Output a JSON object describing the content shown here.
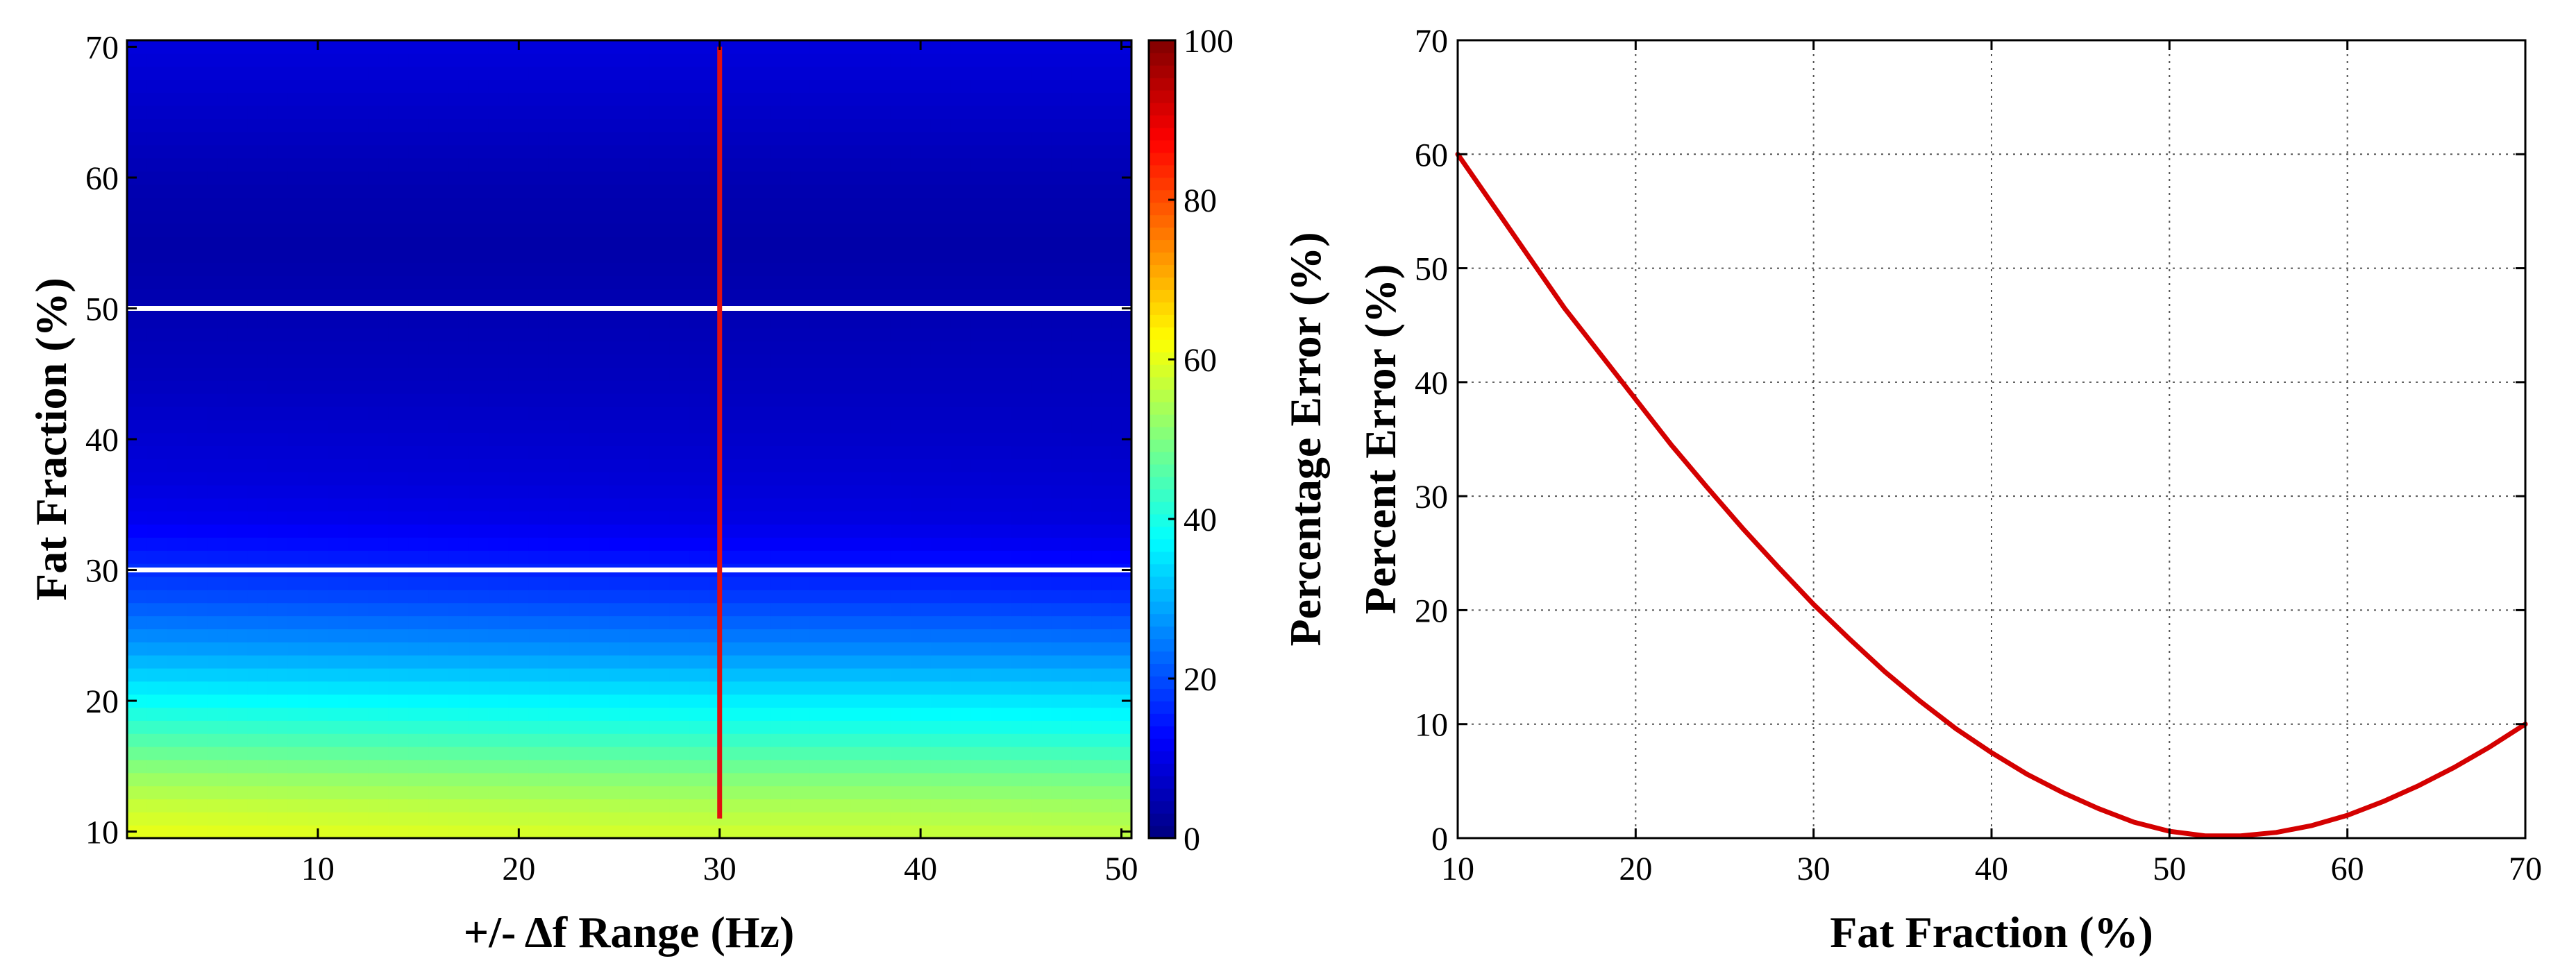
{
  "chart_data": [
    {
      "type": "heatmap",
      "xlabel": "+/- Δf Range (Hz)",
      "ylabel": "Fat Fraction (%)",
      "x_range": [
        0.5,
        50.5
      ],
      "y_range": [
        9.5,
        70.5
      ],
      "xticks": [
        10,
        20,
        30,
        40,
        50
      ],
      "yticks": [
        10,
        20,
        30,
        40,
        50,
        60,
        70
      ],
      "colormap": "jet",
      "clim": [
        0,
        100
      ],
      "colorbar": {
        "label": "Percentage Error (%)",
        "ticks": [
          0,
          20,
          40,
          60,
          80,
          100
        ]
      },
      "z_rows": [
        {
          "fat_fraction": 10,
          "error_at_x1": 60,
          "error_at_x50": 56
        },
        {
          "fat_fraction": 12,
          "error_at_x1": 57,
          "error_at_x50": 53
        },
        {
          "fat_fraction": 14,
          "error_at_x1": 53,
          "error_at_x50": 49
        },
        {
          "fat_fraction": 16,
          "error_at_x1": 48,
          "error_at_x50": 44
        },
        {
          "fat_fraction": 18,
          "error_at_x1": 43,
          "error_at_x50": 39
        },
        {
          "fat_fraction": 20,
          "error_at_x1": 38,
          "error_at_x50": 35
        },
        {
          "fat_fraction": 22,
          "error_at_x1": 33,
          "error_at_x50": 30
        },
        {
          "fat_fraction": 24,
          "error_at_x1": 28,
          "error_at_x50": 25
        },
        {
          "fat_fraction": 26,
          "error_at_x1": 24,
          "error_at_x50": 21
        },
        {
          "fat_fraction": 28,
          "error_at_x1": 20,
          "error_at_x50": 17
        },
        {
          "fat_fraction": 30,
          "error_at_x1": 17,
          "error_at_x50": 14
        },
        {
          "fat_fraction": 32,
          "error_at_x1": 14,
          "error_at_x50": 11
        },
        {
          "fat_fraction": 34,
          "error_at_x1": 11,
          "error_at_x50": 9
        },
        {
          "fat_fraction": 37,
          "error_at_x1": 9,
          "error_at_x50": 8
        },
        {
          "fat_fraction": 40,
          "error_at_x1": 8,
          "error_at_x50": 7
        },
        {
          "fat_fraction": 45,
          "error_at_x1": 6,
          "error_at_x50": 6
        },
        {
          "fat_fraction": 50,
          "error_at_x1": 5,
          "error_at_x50": 5
        },
        {
          "fat_fraction": 55,
          "error_at_x1": 4,
          "error_at_x50": 4
        },
        {
          "fat_fraction": 60,
          "error_at_x1": 5,
          "error_at_x50": 5
        },
        {
          "fat_fraction": 65,
          "error_at_x1": 7,
          "error_at_x50": 7
        },
        {
          "fat_fraction": 70,
          "error_at_x1": 9,
          "error_at_x50": 9
        }
      ],
      "overlays": [
        {
          "orientation": "horizontal",
          "y": 50,
          "color": "#ffffff"
        },
        {
          "orientation": "horizontal",
          "y": 30,
          "color": "#ffffff"
        },
        {
          "orientation": "vertical",
          "x": 30,
          "y_from": 11,
          "y_to": 70,
          "color": "#e01010"
        }
      ]
    },
    {
      "type": "line",
      "xlabel": "Fat Fraction (%)",
      "ylabel": "Percent Error (%)",
      "xlim": [
        10,
        70
      ],
      "ylim": [
        0,
        70
      ],
      "xticks": [
        10,
        20,
        30,
        40,
        50,
        60,
        70
      ],
      "yticks": [
        0,
        10,
        20,
        30,
        40,
        50,
        60,
        70
      ],
      "grid": true,
      "series": [
        {
          "color": "#d40000",
          "x": [
            10,
            12,
            14,
            16,
            18,
            20,
            22,
            24,
            26,
            28,
            30,
            32,
            34,
            36,
            38,
            40,
            42,
            44,
            46,
            48,
            50,
            52,
            54,
            56,
            58,
            60,
            62,
            64,
            66,
            68,
            70
          ],
          "y": [
            60,
            55.5,
            51,
            46.5,
            42.5,
            38.5,
            34.5,
            30.8,
            27.2,
            23.8,
            20.5,
            17.5,
            14.6,
            12,
            9.6,
            7.5,
            5.6,
            4,
            2.6,
            1.4,
            0.6,
            0.2,
            0.2,
            0.5,
            1.1,
            2,
            3.2,
            4.6,
            6.2,
            8,
            10
          ]
        }
      ]
    }
  ]
}
